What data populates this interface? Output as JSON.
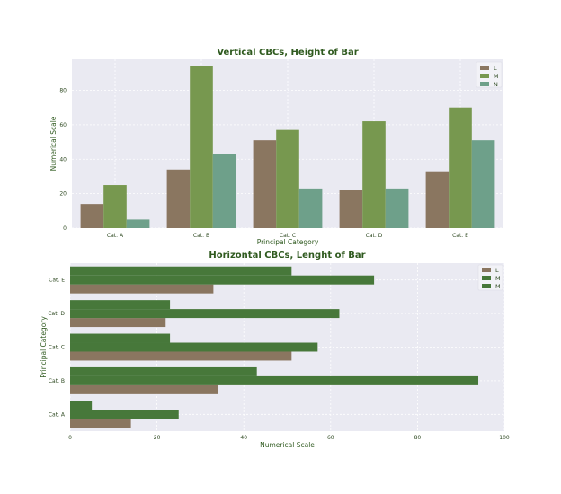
{
  "colors": {
    "background": "#ffffff",
    "axes_bg": "#eaeaf2",
    "grid": "#ffffff",
    "text": "#2f5a1f",
    "tick_text": "#2f4a22",
    "L": "#8a7660",
    "M": "#77984f",
    "N": "#6ea08a",
    "M_dark": "#47783a"
  },
  "chart_data": [
    {
      "type": "bar",
      "orientation": "vertical",
      "title": "Vertical CBCs, Height of Bar",
      "xlabel": "Principal Category",
      "ylabel": "Numerical Scale",
      "categories": [
        "Cat. A",
        "Cat. B",
        "Cat. C",
        "Cat. D",
        "Cat. E"
      ],
      "series": [
        {
          "name": "L",
          "values": [
            14,
            34,
            51,
            22,
            33
          ],
          "color": "#8a7660"
        },
        {
          "name": "M",
          "values": [
            25,
            94,
            57,
            62,
            70
          ],
          "color": "#77984f"
        },
        {
          "name": "N",
          "values": [
            5,
            43,
            23,
            23,
            51
          ],
          "color": "#6ea08a"
        }
      ],
      "ylim": [
        0,
        98
      ],
      "yticks": [
        0,
        20,
        40,
        60,
        80
      ],
      "grid": true,
      "legend": "top-right"
    },
    {
      "type": "bar",
      "orientation": "horizontal",
      "title": "Horizontal CBCs, Lenght of Bar",
      "xlabel": "Numerical Scale",
      "ylabel": "Principal Category",
      "categories": [
        "Cat. A",
        "Cat. B",
        "Cat. C",
        "Cat. D",
        "Cat. E"
      ],
      "series": [
        {
          "name": "L",
          "values": [
            14,
            34,
            51,
            22,
            33
          ],
          "color": "#8a7660"
        },
        {
          "name": "M",
          "values": [
            25,
            94,
            57,
            62,
            70
          ],
          "color": "#47783a"
        },
        {
          "name": "M",
          "values": [
            5,
            43,
            23,
            23,
            51
          ],
          "color": "#47783a"
        }
      ],
      "xlim": [
        0,
        100
      ],
      "xticks": [
        0,
        20,
        40,
        60,
        80,
        100
      ],
      "grid": true,
      "legend": "top-right"
    }
  ]
}
